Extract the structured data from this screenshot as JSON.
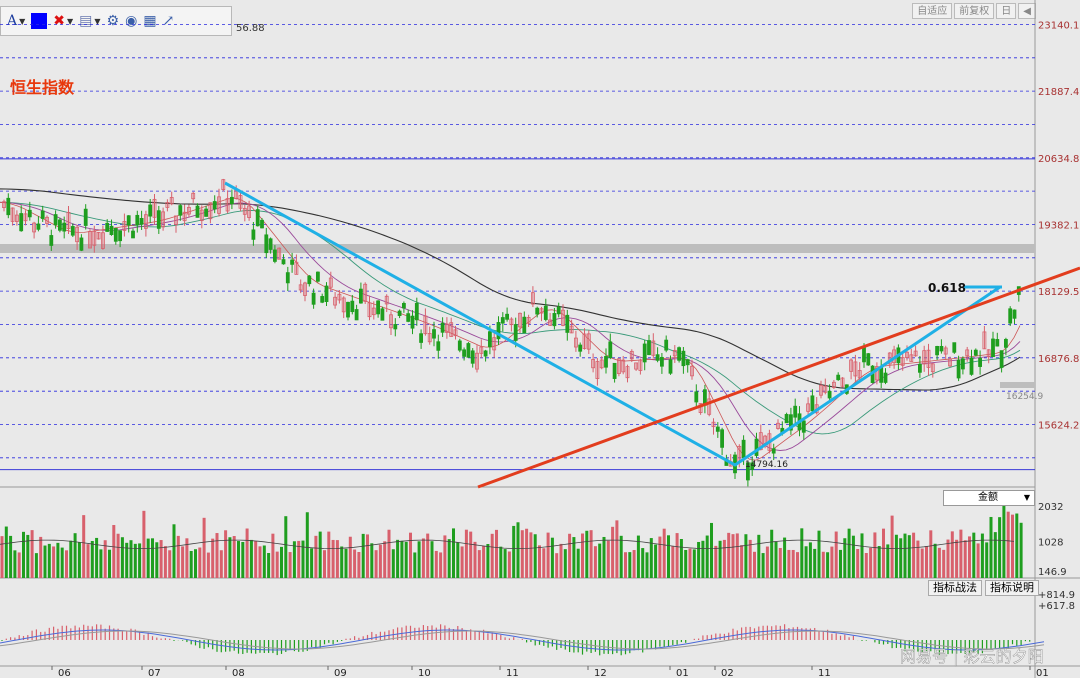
{
  "toolbar": {
    "font_icon_label": "A",
    "color_swatch": "#0000ff",
    "icons": [
      "font-icon",
      "color-swatch-icon",
      "delete-icon",
      "bookmark-icon",
      "settings-icon",
      "eye-icon",
      "grid-icon",
      "share-icon"
    ]
  },
  "header": {
    "partial_value": "56.88",
    "corner_buttons": [
      "自适应",
      "前复权",
      "日",
      "◀"
    ]
  },
  "chart_title": "恒生指数",
  "annotations": {
    "fib_label": "0.618",
    "low_label": "14794.16",
    "ma_label_right": "16254.9",
    "ma_label_right2": "16..."
  },
  "colors": {
    "title": "#e8380c",
    "bull_candle": "#d8606c",
    "bear_candle": "#1f9e1f",
    "blue_trend": "#1fb0e6",
    "red_trend": "#e23d1e",
    "grid_dash": "#2a2ae0",
    "axis_label": "#a83232"
  },
  "chart_data": [
    {
      "type": "candlestick",
      "title": "恒生指数",
      "y_ticks": [
        23140.11,
        21887.47,
        20634.82,
        19382.18,
        18129.53,
        16876.89,
        15624.25
      ],
      "x_ticks": [
        "06",
        "07",
        "08",
        "09",
        "10",
        "11",
        "12",
        "01",
        "02",
        "11",
        "01"
      ],
      "ylim": [
        14450,
        23600
      ],
      "low_point": 14794.16,
      "fib_ratio": 0.618,
      "trendlines": [
        "descending channel (blue)",
        "ascending support (red)"
      ],
      "grid": true
    },
    {
      "type": "bar",
      "title": "Volume",
      "selector_label": "金额",
      "y_ticks": [
        2032,
        1028,
        146.9
      ]
    },
    {
      "type": "bar",
      "title": "Indicator",
      "buttons": [
        "指标战法",
        "指标说明"
      ],
      "y_ticks": [
        "+814.9",
        "+617.8"
      ]
    }
  ],
  "watermark": "网易号 | 彩云的夕阳"
}
